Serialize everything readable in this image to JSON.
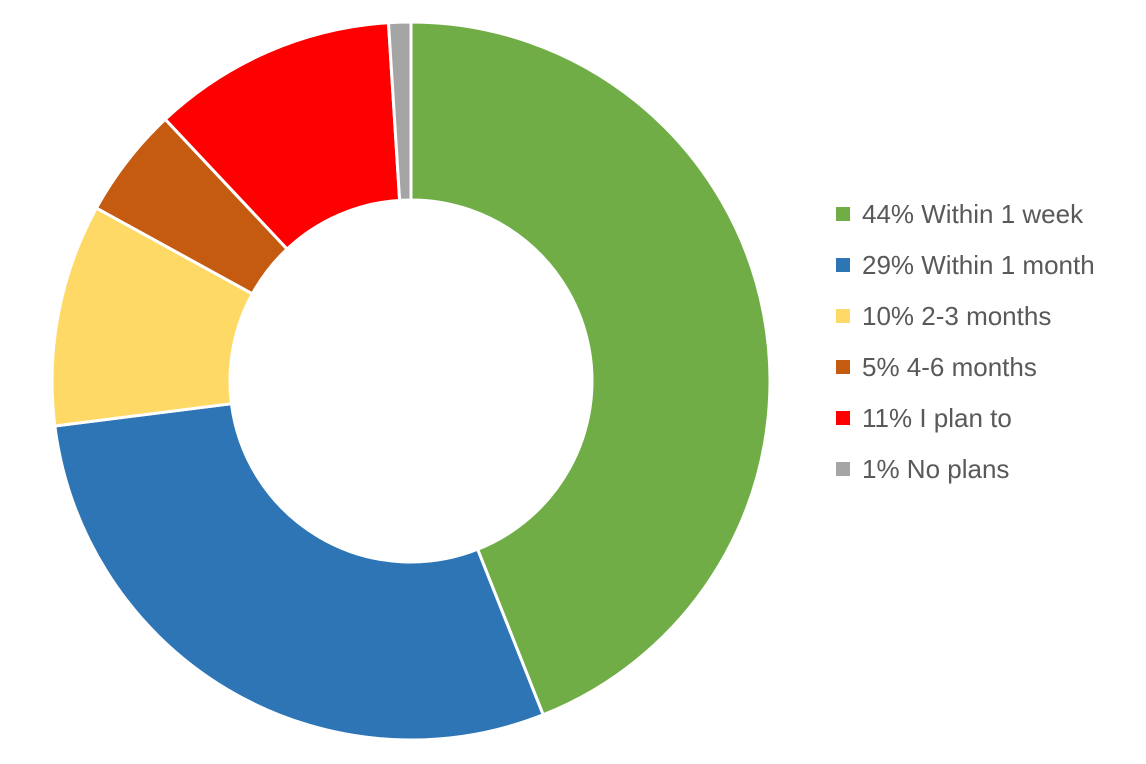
{
  "chart_data": {
    "type": "pie",
    "variant": "donut",
    "legend_position": "right",
    "slices": [
      {
        "label": "44% Within 1 week",
        "percent": 44,
        "color": "#70AD47"
      },
      {
        "label": "29% Within 1 month",
        "percent": 29,
        "color": "#2E75B6"
      },
      {
        "label": "10% 2-3 months",
        "percent": 10,
        "color": "#FFD966"
      },
      {
        "label": "5% 4-6 months",
        "percent": 5,
        "color": "#C55A11"
      },
      {
        "label": "11% I plan to",
        "percent": 11,
        "color": "#FF0000"
      },
      {
        "label": "1% No plans",
        "percent": 1,
        "color": "#A5A5A5"
      }
    ]
  }
}
